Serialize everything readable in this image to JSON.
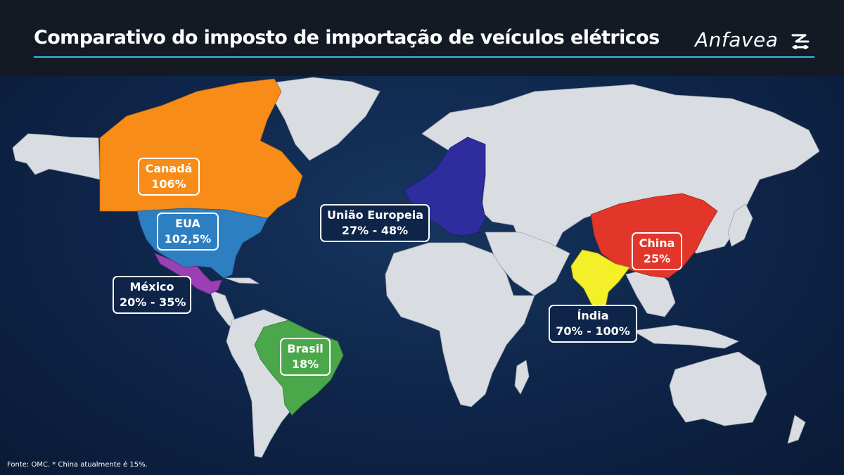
{
  "header": {
    "title": "Comparativo do imposto de importação de veículos elétricos",
    "logo_text": "Anfavea"
  },
  "colors": {
    "header_bg": "#131a24",
    "accent_rule": "#3fb6e4",
    "ocean": "#0e2448",
    "land": "#d9dde1",
    "canada": "#f78c18",
    "usa": "#2e7fc2",
    "mexico": "#9a3fb4",
    "brazil": "#4ba84a",
    "eu": "#2d2d9e",
    "china": "#e2362a",
    "india": "#f3ef28"
  },
  "regions": [
    {
      "id": "canada",
      "name": "Canadá",
      "value": "106%"
    },
    {
      "id": "usa",
      "name": "EUA",
      "value": "102,5%"
    },
    {
      "id": "mexico",
      "name": "México",
      "value": "20% - 35%"
    },
    {
      "id": "brazil",
      "name": "Brasil",
      "value": "18%"
    },
    {
      "id": "eu",
      "name": "União Europeia",
      "value": "27% - 48%"
    },
    {
      "id": "china",
      "name": "China",
      "value": "25%"
    },
    {
      "id": "india",
      "name": "Índia",
      "value": "70% - 100%"
    }
  ],
  "footer": {
    "source": "Fonte: OMC. * China atualmente é 15%."
  }
}
